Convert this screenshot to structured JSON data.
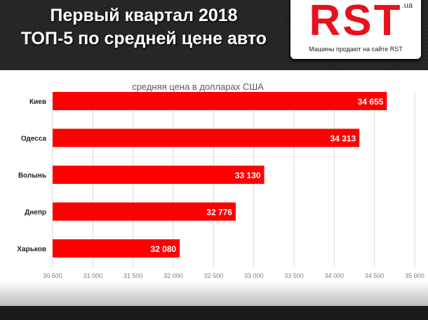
{
  "header": {
    "title_line1": "Первый квартал 2018",
    "title_line2": "ТОП-5 по средней цене авто"
  },
  "logo": {
    "text": "RST",
    "domain": ".ua",
    "tagline": "Машины продают на сайте RST"
  },
  "colors": {
    "bar": "#ff0000",
    "grid": "#d9d9d9"
  },
  "chart_data": {
    "type": "bar",
    "orientation": "horizontal",
    "title": "средняя цена в долларах США",
    "categories": [
      "Киев",
      "Одесса",
      "Волынь",
      "Днепр",
      "Харьков"
    ],
    "values": [
      34655,
      34313,
      33130,
      32776,
      32080
    ],
    "value_labels": [
      "34 655",
      "34 313",
      "33 130",
      "32 776",
      "32 080"
    ],
    "xlim": [
      30500,
      35000
    ],
    "xticks": [
      30500,
      31000,
      31500,
      32000,
      32500,
      33000,
      33500,
      34000,
      34500,
      35000
    ],
    "xtick_labels": [
      "30 500",
      "31 000",
      "31 500",
      "32 000",
      "32 500",
      "33 000",
      "33 500",
      "34 000",
      "34 500",
      "35 000"
    ],
    "grid": true
  }
}
